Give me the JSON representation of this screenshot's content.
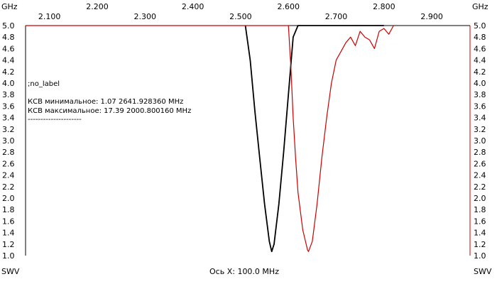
{
  "chart_data": {
    "type": "line",
    "x_unit": "GHz",
    "y_unit_left": "SWV",
    "y_unit_right": "SWV",
    "xlabel": "Ось X: 100.0 MHz",
    "xlim": [
      2.05,
      2.98
    ],
    "ylim": [
      1.0,
      5.0
    ],
    "x_ticks_lower": [
      "2.100",
      "2.300",
      "2.500",
      "2.700",
      "2.900"
    ],
    "x_ticks_upper": [
      "2.200",
      "2.400",
      "2.600",
      "2.800"
    ],
    "x_ticks_lower_values": [
      2.1,
      2.3,
      2.5,
      2.7,
      2.9
    ],
    "x_ticks_upper_values": [
      2.2,
      2.4,
      2.6,
      2.8
    ],
    "y_ticks": [
      "1.0",
      "1.2",
      "1.4",
      "1.6",
      "1.8",
      "2.0",
      "2.2",
      "2.4",
      "2.6",
      "2.8",
      "3.0",
      "3.2",
      "3.4",
      "3.6",
      "3.8",
      "4.0",
      "4.2",
      "4.4",
      "4.6",
      "4.8",
      "5.0"
    ],
    "label_text": ";no_label",
    "info_lines": [
      "КСВ минимальное: 1.07  2641.928360 MHz",
      "КСВ максимальное: 17.39  2000.800160 MHz",
      "---------------------"
    ],
    "colors": {
      "series_black": "#000000",
      "series_red": "#cc0000",
      "frame_left": "#000000",
      "frame_right": "#cc0000"
    },
    "series": [
      {
        "color": "#000000",
        "x": [
          2.51,
          2.52,
          2.53,
          2.54,
          2.55,
          2.56,
          2.565,
          2.57,
          2.58,
          2.59,
          2.6,
          2.61,
          2.62,
          2.64,
          2.66,
          2.68,
          2.7,
          2.72,
          2.74,
          2.76,
          2.78,
          2.8
        ],
        "y": [
          5.0,
          4.4,
          3.5,
          2.7,
          1.9,
          1.25,
          1.07,
          1.2,
          1.9,
          2.8,
          3.8,
          4.8,
          5.0,
          5.0,
          5.0,
          5.0,
          5.0,
          5.0,
          5.0,
          5.0,
          5.0,
          5.0
        ]
      },
      {
        "color": "#cc0000",
        "x": [
          2.05,
          2.6,
          2.605,
          2.61,
          2.615,
          2.62,
          2.63,
          2.64,
          2.642,
          2.65,
          2.66,
          2.67,
          2.68,
          2.69,
          2.7,
          2.71,
          2.72,
          2.73,
          2.74,
          2.75,
          2.76,
          2.77,
          2.78,
          2.79,
          2.8,
          2.81,
          2.82
        ],
        "y": [
          5.0,
          5.0,
          4.3,
          3.4,
          2.7,
          2.1,
          1.45,
          1.1,
          1.07,
          1.25,
          1.9,
          2.7,
          3.4,
          4.0,
          4.4,
          4.55,
          4.7,
          4.8,
          4.65,
          4.9,
          4.8,
          4.75,
          4.6,
          4.9,
          4.95,
          4.85,
          5.0
        ]
      }
    ]
  }
}
